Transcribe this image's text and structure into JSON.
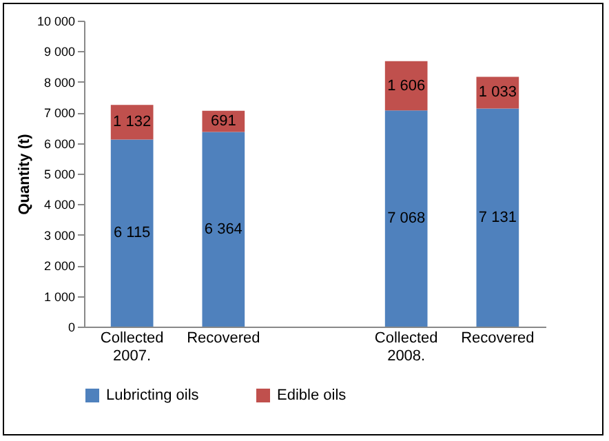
{
  "chart_data": {
    "type": "bar",
    "stacked": true,
    "ylabel": "Quantity (t)",
    "categories": [
      "Collected 2007.",
      "Recovered",
      null,
      "Collected 2008.",
      "Recovered"
    ],
    "series": [
      {
        "name": "Lubricting oils",
        "color": "#4f81bd",
        "values": [
          6115,
          6364,
          null,
          7068,
          7131
        ],
        "value_labels": [
          "6 115",
          "6 364",
          null,
          "7 068",
          "7 131"
        ]
      },
      {
        "name": "Edible oils",
        "color": "#c0504d",
        "values": [
          1132,
          691,
          null,
          1606,
          1033
        ],
        "value_labels": [
          "1 132",
          "691",
          null,
          "1 606",
          "1 033"
        ]
      }
    ],
    "ylim": [
      0,
      10000
    ],
    "yticks": [
      0,
      {
        "value": 1000,
        "label": "1 000"
      },
      {
        "value": 2000,
        "label": "2 000"
      },
      {
        "value": 3000,
        "label": "3 000"
      },
      {
        "value": 4000,
        "label": "4 000"
      },
      {
        "value": 5000,
        "label": "5 000"
      },
      {
        "value": 6000,
        "label": "6 000"
      },
      {
        "value": 7000,
        "label": "7 000"
      },
      {
        "value": 8000,
        "label": "8 000"
      },
      {
        "value": 9000,
        "label": "9 000"
      },
      {
        "value": 10000,
        "label": "10 000"
      }
    ],
    "grid": false,
    "legend": "bottom"
  }
}
